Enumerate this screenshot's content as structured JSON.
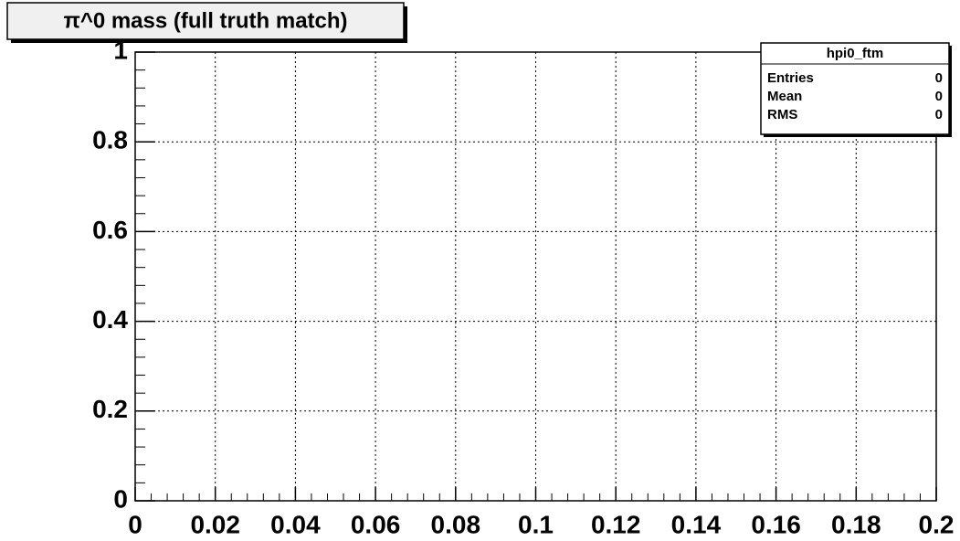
{
  "chart_data": {
    "type": "histogram",
    "title": "π^0 mass (full truth match)",
    "xlim": [
      0,
      0.2
    ],
    "xticks": [
      0,
      0.02,
      0.04,
      0.06,
      0.08,
      0.1,
      0.12,
      0.14,
      0.16,
      0.18,
      0.2
    ],
    "ylim": [
      0,
      1
    ],
    "yticks": [
      0,
      0.2,
      0.4,
      0.6,
      0.8,
      1
    ],
    "grid": true,
    "stats": {
      "title": "hpi0_ftm",
      "rows": [
        {
          "label": "Entries",
          "value": 0
        },
        {
          "label": "Mean",
          "value": 0
        },
        {
          "label": "RMS",
          "value": 0
        }
      ]
    }
  }
}
